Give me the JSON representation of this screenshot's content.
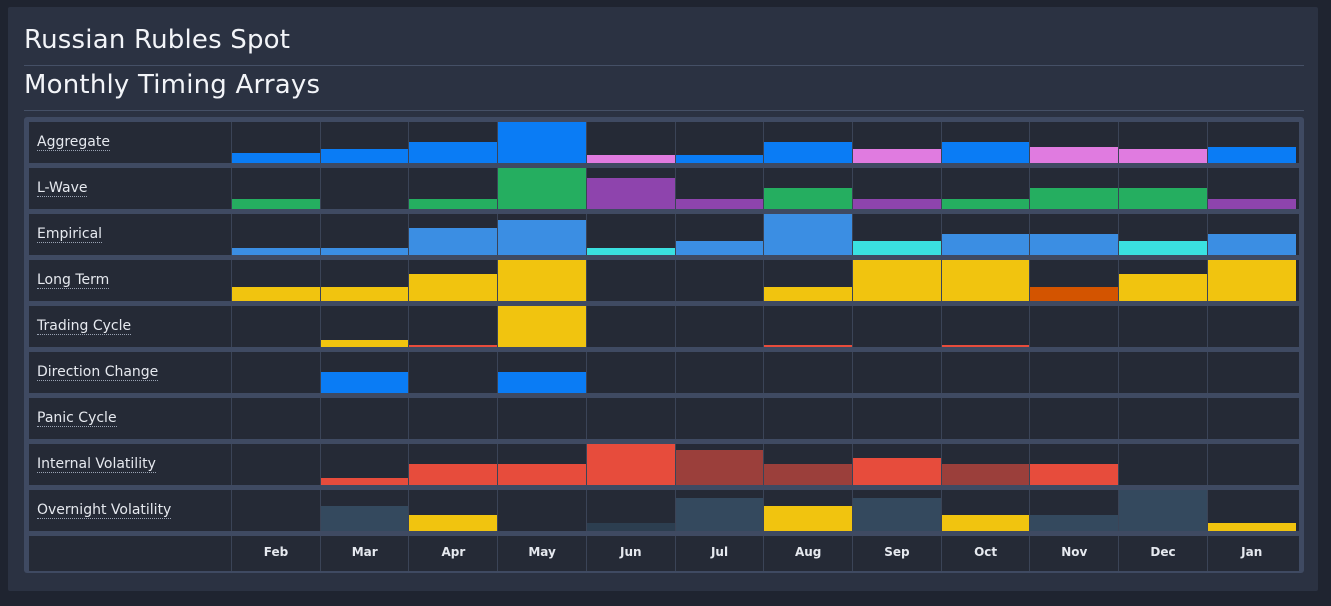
{
  "header": {
    "title": "Russian Rubles Spot",
    "subtitle": "Monthly Timing Arrays"
  },
  "months": [
    "Feb",
    "Mar",
    "Apr",
    "May",
    "Jun",
    "Jul",
    "Aug",
    "Sep",
    "Oct",
    "Nov",
    "Dec",
    "Jan"
  ],
  "colors": {
    "blue": "#0a7cf5",
    "pink": "#e07be0",
    "green": "#25ae60",
    "purple": "#8e44ad",
    "lightblue": "#3b8ee3",
    "cyan": "#3ae0e0",
    "yellow": "#f1c40f",
    "orange": "#d35400",
    "red": "#e74c3c",
    "darkred": "#9b3f3b",
    "slate": "#34495e",
    "darkslate": "#2c3e50"
  },
  "rows": [
    {
      "label": "Aggregate",
      "values": [
        0.25,
        0.35,
        0.5,
        1.0,
        0.2,
        0.2,
        0.5,
        0.35,
        0.5,
        0.38,
        0.35,
        0.4
      ],
      "colors": [
        "blue",
        "blue",
        "blue",
        "blue",
        "pink",
        "blue",
        "blue",
        "pink",
        "blue",
        "pink",
        "pink",
        "blue"
      ]
    },
    {
      "label": "L-Wave",
      "values": [
        0.25,
        0,
        0.25,
        1.0,
        0.75,
        0.25,
        0.5,
        0.25,
        0.25,
        0.5,
        0.5,
        0.25
      ],
      "colors": [
        "green",
        null,
        "green",
        "green",
        "purple",
        "purple",
        "green",
        "purple",
        "green",
        "green",
        "green",
        "purple"
      ]
    },
    {
      "label": "Empirical",
      "values": [
        0.18,
        0.18,
        0.67,
        0.85,
        0.18,
        0.33,
        1.0,
        0.33,
        0.5,
        0.5,
        0.33,
        0.5
      ],
      "colors": [
        "lightblue",
        "lightblue",
        "lightblue",
        "lightblue",
        "cyan",
        "lightblue",
        "lightblue",
        "cyan",
        "lightblue",
        "lightblue",
        "cyan",
        "lightblue"
      ]
    },
    {
      "label": "Long Term",
      "values": [
        0.33,
        0.33,
        0.67,
        1.0,
        0,
        0,
        0.33,
        1.0,
        1.0,
        0.33,
        0.67,
        1.0
      ],
      "colors": [
        "yellow",
        "yellow",
        "yellow",
        "yellow",
        null,
        null,
        "yellow",
        "yellow",
        "yellow",
        "orange",
        "yellow",
        "yellow"
      ]
    },
    {
      "label": "Trading Cycle",
      "values": [
        0,
        0.18,
        0.05,
        1.0,
        0,
        0,
        0.05,
        0,
        0.05,
        0,
        0,
        0
      ],
      "colors": [
        null,
        "yellow",
        "red",
        "yellow",
        null,
        null,
        "red",
        null,
        "red",
        null,
        null,
        null
      ]
    },
    {
      "label": "Direction Change",
      "values": [
        0,
        0.5,
        0,
        0.5,
        0,
        0,
        0,
        0,
        0,
        0,
        0,
        0
      ],
      "colors": [
        null,
        "blue",
        null,
        "blue",
        null,
        null,
        null,
        null,
        null,
        null,
        null,
        null
      ]
    },
    {
      "label": "Panic Cycle",
      "values": [
        0,
        0,
        0,
        0,
        0,
        0,
        0,
        0,
        0,
        0,
        0,
        0
      ],
      "colors": [
        null,
        null,
        null,
        null,
        null,
        null,
        null,
        null,
        null,
        null,
        null,
        null
      ]
    },
    {
      "label": "Internal Volatility",
      "values": [
        0,
        0.18,
        0.5,
        0.5,
        1.0,
        0.85,
        0.5,
        0.67,
        0.5,
        0.5,
        0,
        0
      ],
      "colors": [
        null,
        "red",
        "red",
        "red",
        "red",
        "darkred",
        "darkred",
        "red",
        "darkred",
        "red",
        null,
        null
      ]
    },
    {
      "label": "Overnight Volatility",
      "values": [
        0,
        0.6,
        0.4,
        0,
        0.2,
        0.8,
        0.6,
        0.8,
        0.4,
        0.4,
        1.0,
        0.2
      ],
      "colors": [
        null,
        "slate",
        "yellow",
        null,
        "darkslate",
        "slate",
        "yellow",
        "slate",
        "yellow",
        "slate",
        "slate",
        "yellow"
      ]
    }
  ]
}
